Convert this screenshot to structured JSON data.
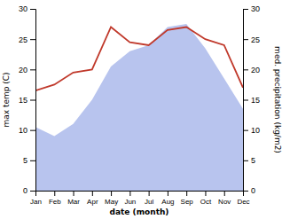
{
  "chart_data": {
    "type": "line",
    "categories": [
      "Jan",
      "Feb",
      "Mar",
      "Apr",
      "May",
      "Jun",
      "Jul",
      "Aug",
      "Sep",
      "Oct",
      "Nov",
      "Dec"
    ],
    "xlabel": "date (month)",
    "ylabel": "max temp (C)",
    "y2label": "med. precipitation (kg/m2)",
    "ylim": [
      0,
      30
    ],
    "yticks": [
      0,
      5,
      10,
      15,
      20,
      25,
      30
    ],
    "y2lim": [
      0,
      30
    ],
    "y2ticks": [
      0,
      5,
      10,
      15,
      20,
      25,
      30
    ],
    "grid": false,
    "series": [
      {
        "type": "area",
        "color": "#b8c4ee",
        "values": [
          10.5,
          9.0,
          11.0,
          15.0,
          20.5,
          23.0,
          24.0,
          27.0,
          27.5,
          23.5,
          18.5,
          13.5
        ]
      },
      {
        "type": "line",
        "color": "#c0392b",
        "axis": "y2",
        "values": [
          16.5,
          17.5,
          19.5,
          20.0,
          27.0,
          24.5,
          24.0,
          26.5,
          27.0,
          25.0,
          24.0,
          17.0
        ]
      }
    ]
  }
}
